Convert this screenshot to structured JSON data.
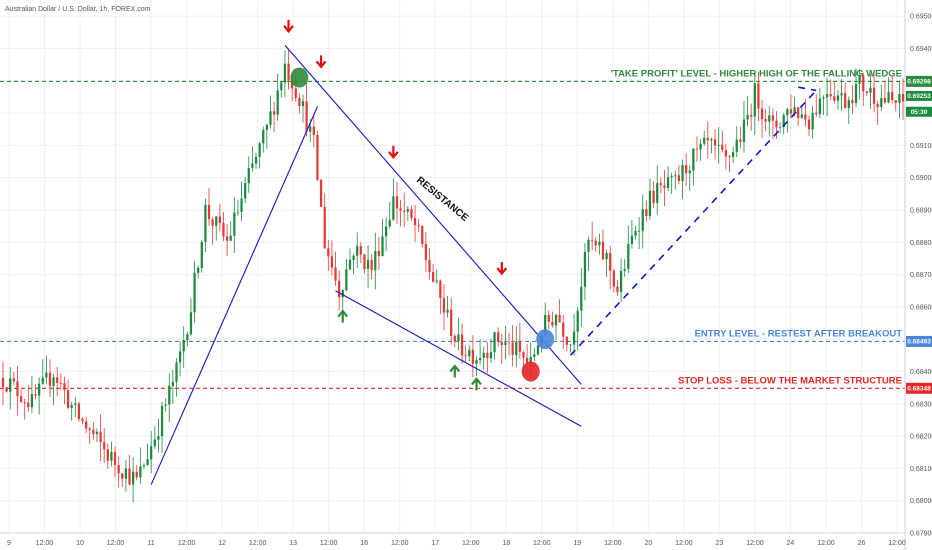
{
  "symbol_label": "Australian Dollar / U.S. Dollar, 1h, FOREX.com",
  "colors": {
    "up": "#26a69a",
    "up_body": "#1b8a3e",
    "down": "#e53935",
    "line_blue": "#1515c8",
    "take_profit": "#2e8b3d",
    "entry": "#4a86d8",
    "stop": "#e32626",
    "arrow_red": "#e01010",
    "arrow_green": "#2e8b3d",
    "grid": "#f0f0f3",
    "axis_text": "#555555"
  },
  "chart_data": {
    "type": "candlestick",
    "ylim": [
      0.679,
      0.6955
    ],
    "y_ticks": [
      "0.69500",
      "0.69400",
      "0.69300",
      "0.69200",
      "0.69100",
      "0.69000",
      "0.68900",
      "0.68800",
      "0.68700",
      "0.68600",
      "0.68500",
      "0.68400",
      "0.68300",
      "0.68200",
      "0.68100",
      "0.68000",
      "0.67900"
    ],
    "x_ticks": [
      "9",
      "12:00",
      "10",
      "12:00",
      "11",
      "12:00",
      "12",
      "12:00",
      "13",
      "12:00",
      "16",
      "12:00",
      "17",
      "12:00",
      "18",
      "12:00",
      "19",
      "12:00",
      "20",
      "12:00",
      "23",
      "12:00",
      "24",
      "12:00",
      "26",
      "12:00"
    ],
    "key_points": [
      {
        "i": 0,
        "p": 0.6838
      },
      {
        "i": 8,
        "p": 0.683
      },
      {
        "i": 14,
        "p": 0.684
      },
      {
        "i": 20,
        "p": 0.6827
      },
      {
        "i": 30,
        "p": 0.6813
      },
      {
        "i": 37,
        "p": 0.6806
      },
      {
        "i": 42,
        "p": 0.682
      },
      {
        "i": 48,
        "p": 0.684
      },
      {
        "i": 52,
        "p": 0.686
      },
      {
        "i": 56,
        "p": 0.689
      },
      {
        "i": 62,
        "p": 0.688
      },
      {
        "i": 68,
        "p": 0.69
      },
      {
        "i": 73,
        "p": 0.6915
      },
      {
        "i": 78,
        "p": 0.6935
      },
      {
        "i": 82,
        "p": 0.6925
      },
      {
        "i": 86,
        "p": 0.691
      },
      {
        "i": 89,
        "p": 0.688
      },
      {
        "i": 93,
        "p": 0.6865
      },
      {
        "i": 97,
        "p": 0.6878
      },
      {
        "i": 102,
        "p": 0.6872
      },
      {
        "i": 108,
        "p": 0.6893
      },
      {
        "i": 114,
        "p": 0.6885
      },
      {
        "i": 120,
        "p": 0.6865
      },
      {
        "i": 126,
        "p": 0.6848
      },
      {
        "i": 131,
        "p": 0.6845
      },
      {
        "i": 137,
        "p": 0.685
      },
      {
        "i": 142,
        "p": 0.6846
      },
      {
        "i": 146,
        "p": 0.6842
      },
      {
        "i": 149,
        "p": 0.6853
      },
      {
        "i": 153,
        "p": 0.6858
      },
      {
        "i": 157,
        "p": 0.6849
      },
      {
        "i": 162,
        "p": 0.688
      },
      {
        "i": 167,
        "p": 0.6875
      },
      {
        "i": 170,
        "p": 0.6865
      },
      {
        "i": 175,
        "p": 0.6885
      },
      {
        "i": 180,
        "p": 0.6895
      },
      {
        "i": 186,
        "p": 0.6898
      },
      {
        "i": 190,
        "p": 0.6905
      },
      {
        "i": 195,
        "p": 0.691
      },
      {
        "i": 200,
        "p": 0.6905
      },
      {
        "i": 205,
        "p": 0.6915
      },
      {
        "i": 208,
        "p": 0.6926
      },
      {
        "i": 213,
        "p": 0.6915
      },
      {
        "i": 218,
        "p": 0.6922
      },
      {
        "i": 223,
        "p": 0.6918
      },
      {
        "i": 228,
        "p": 0.6928
      },
      {
        "i": 233,
        "p": 0.6924
      },
      {
        "i": 237,
        "p": 0.6929
      },
      {
        "i": 242,
        "p": 0.6925
      },
      {
        "i": 247,
        "p": 0.6923
      }
    ],
    "levels": [
      {
        "name": "take_profit",
        "value": 0.69298,
        "label": "'TAKE PROFIT' LEVEL - HIGHER HIGH OF THE FALLING WEDGE",
        "tag": "0.69298",
        "color_key": "take_profit"
      },
      {
        "name": "entry",
        "value": 0.68493,
        "label": "ENTRY LEVEL - RESTEST AFTER BREAKOUT",
        "tag": "0.68493",
        "color_key": "entry"
      },
      {
        "name": "stop",
        "value": 0.68348,
        "label": "STOP LOSS - BELOW THE MARKET STRUCTURE",
        "tag": "0.68348",
        "color_key": "stop"
      }
    ],
    "price_tags": [
      {
        "value": 0.69253,
        "text": "0.69253",
        "color_key": "up_body"
      },
      {
        "value": 0.69235,
        "text": "05:30",
        "color_key": "up_body"
      }
    ],
    "trend_lines": [
      {
        "from": [
          41,
          0.6805
        ],
        "to": [
          87,
          0.6922
        ],
        "style": "solid",
        "color_key": "line_blue"
      },
      {
        "from": [
          78,
          0.6941
        ],
        "to": [
          160,
          0.6836
        ],
        "style": "solid",
        "color_key": "line_blue"
      },
      {
        "from": [
          92,
          0.6865
        ],
        "to": [
          160,
          0.6823
        ],
        "style": "solid",
        "color_key": "line_blue"
      },
      {
        "from": [
          157,
          0.6845
        ],
        "to": [
          225,
          0.6927
        ],
        "style": "dashed",
        "color_key": "line_blue"
      },
      {
        "from": [
          220,
          0.6928
        ],
        "to": [
          225,
          0.6927
        ],
        "style": "dashed",
        "color_key": "line_blue"
      }
    ],
    "annotation": "RESISTANCE",
    "markers": [
      {
        "type": "circle",
        "i": 82,
        "p": 0.6931,
        "color_key": "take_profit"
      },
      {
        "type": "circle",
        "i": 146,
        "p": 0.684,
        "color_key": "stop"
      },
      {
        "type": "circle",
        "i": 150,
        "p": 0.685,
        "color_key": "entry"
      },
      {
        "type": "arrow-down",
        "i": 79,
        "p": 0.6947,
        "color_key": "arrow_red"
      },
      {
        "type": "arrow-down",
        "i": 88,
        "p": 0.6936,
        "color_key": "arrow_red"
      },
      {
        "type": "arrow-down",
        "i": 108,
        "p": 0.6908,
        "color_key": "arrow_red"
      },
      {
        "type": "arrow-down",
        "i": 138,
        "p": 0.6872,
        "color_key": "arrow_red"
      },
      {
        "type": "arrow-up",
        "i": 94,
        "p": 0.6857,
        "color_key": "arrow_green"
      },
      {
        "type": "arrow-up",
        "i": 125,
        "p": 0.684,
        "color_key": "arrow_green"
      },
      {
        "type": "arrow-up",
        "i": 131,
        "p": 0.6836,
        "color_key": "arrow_green"
      }
    ]
  }
}
